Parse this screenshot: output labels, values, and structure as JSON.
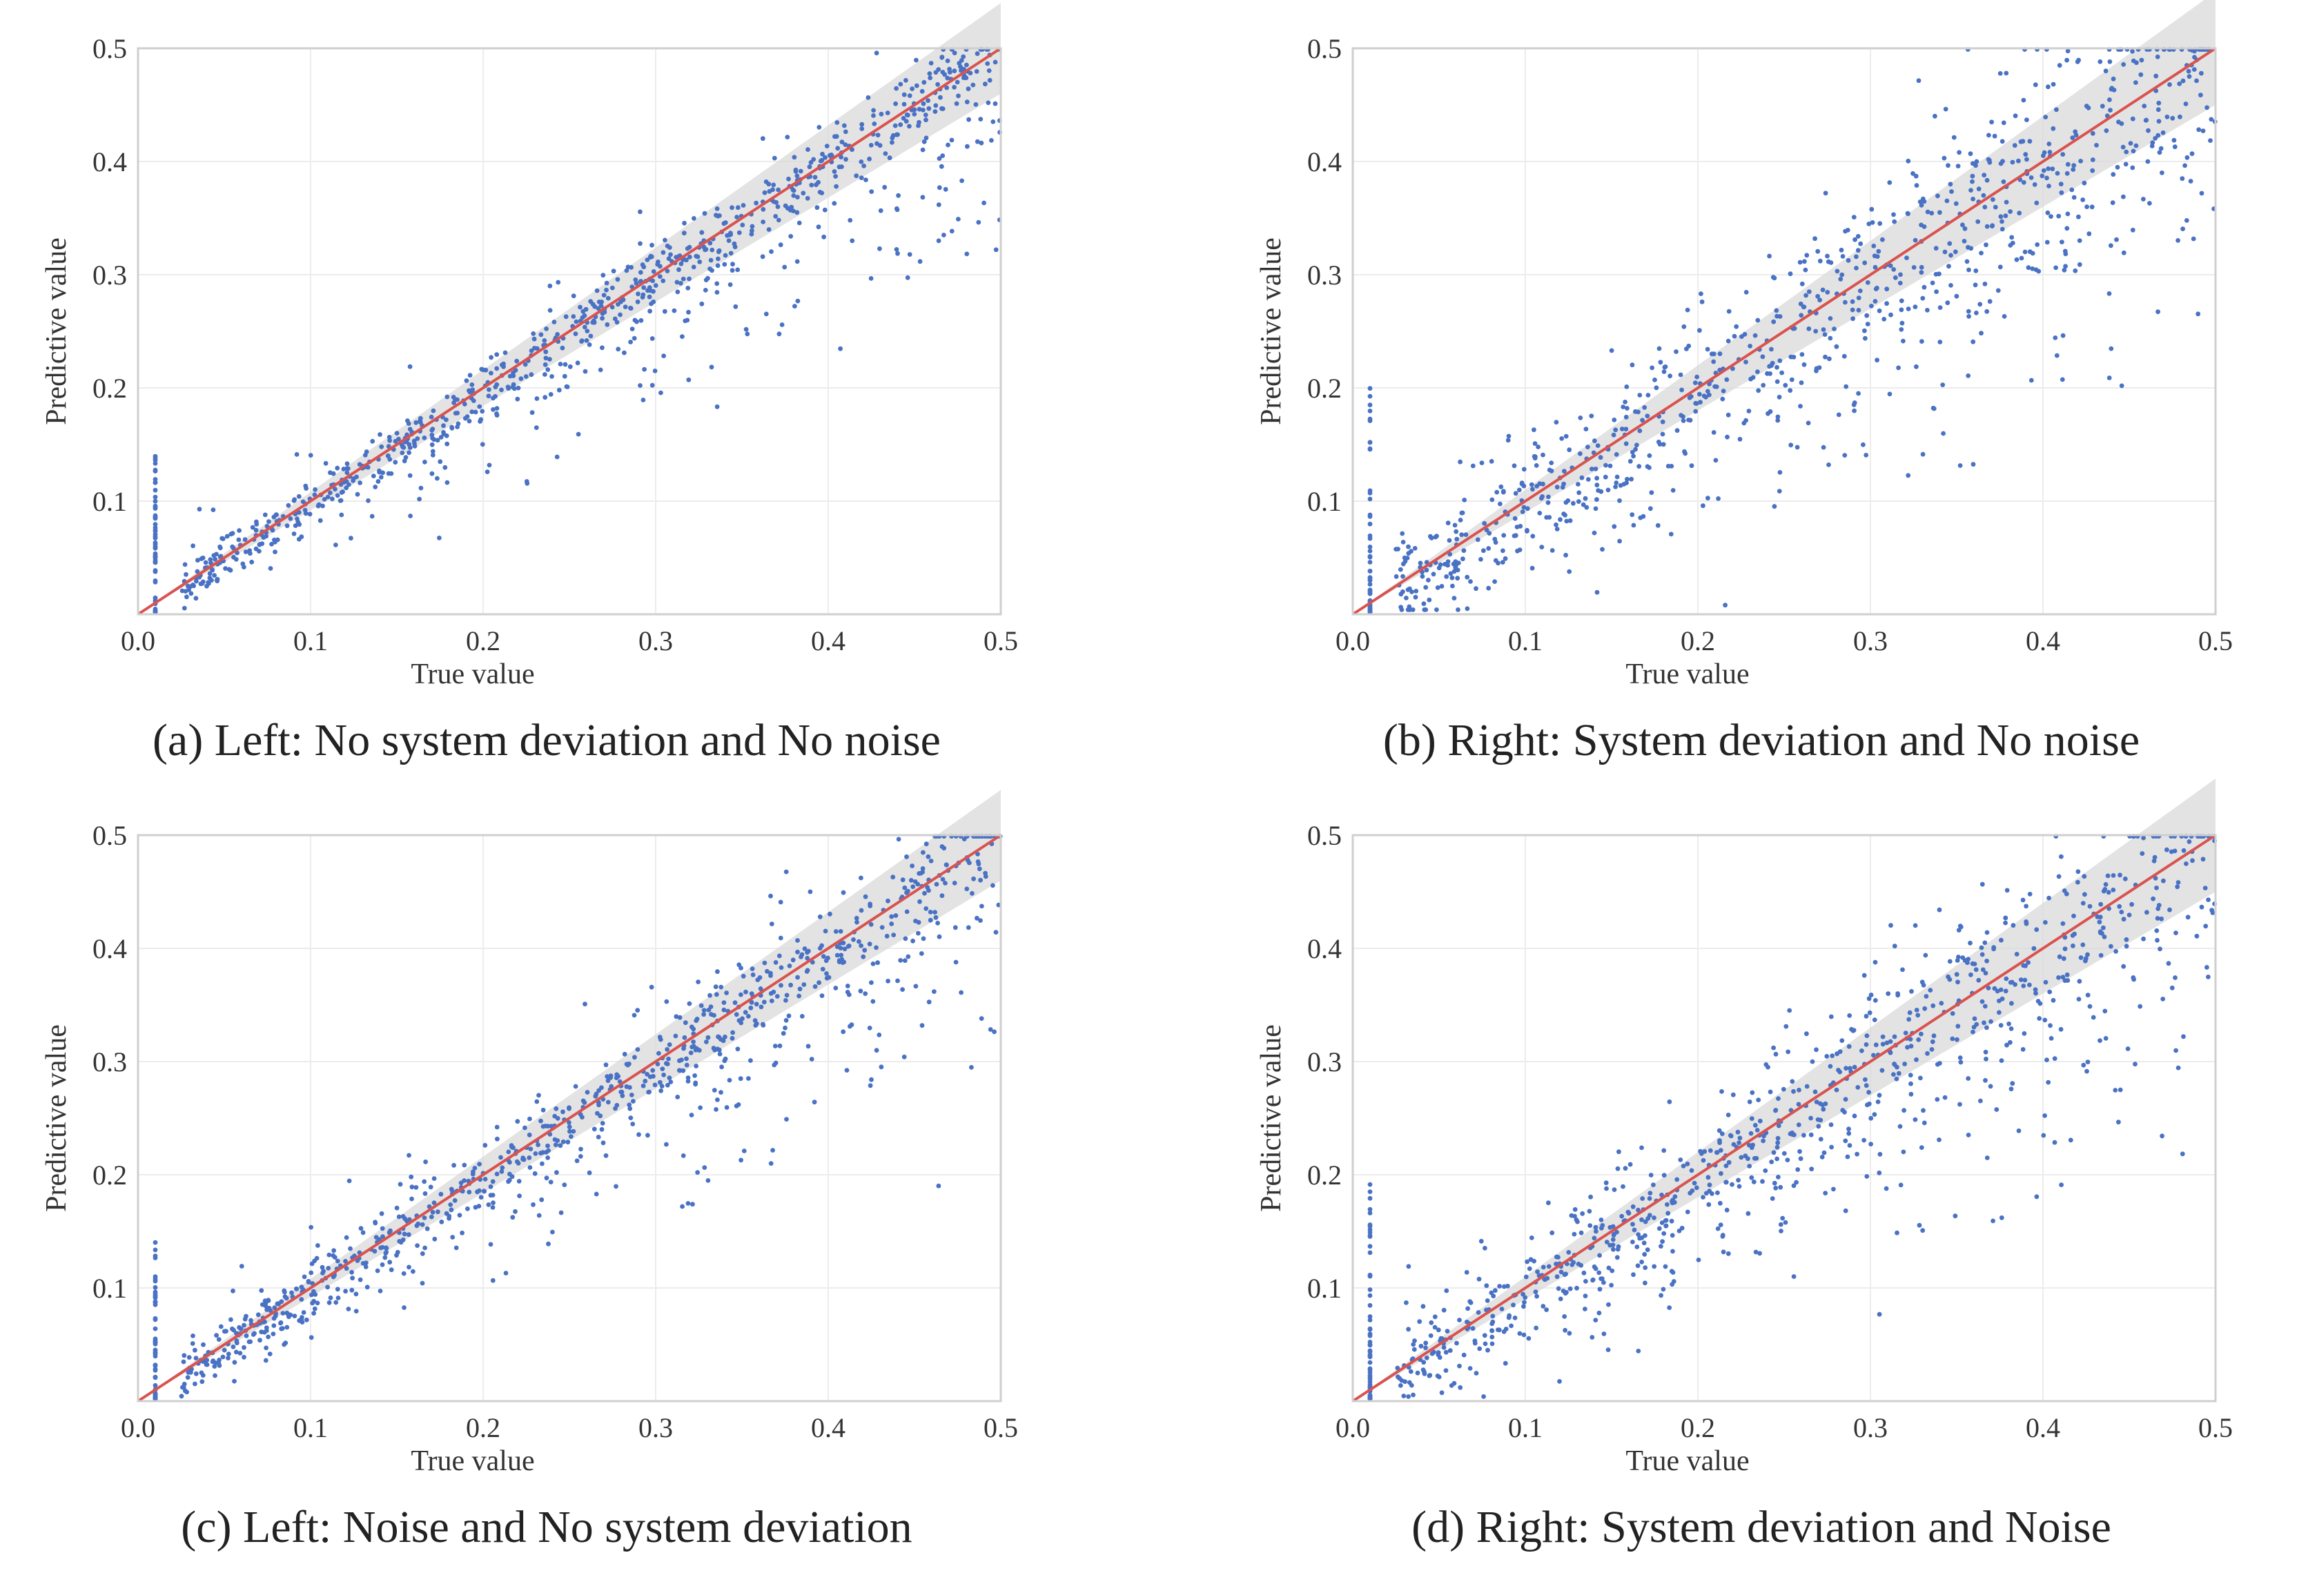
{
  "chart_data": [
    {
      "type": "scatter",
      "caption": "(a) Left: No system deviation and No noise",
      "xlabel": "True value",
      "ylabel": "Predictive value",
      "xlim": [
        0,
        0.5
      ],
      "ylim": [
        0,
        0.5
      ],
      "x_ticks": [
        "0.0",
        "0.1",
        "0.2",
        "0.3",
        "0.4",
        "0.5"
      ],
      "y_ticks": [
        "0.1",
        "0.2",
        "0.3",
        "0.4",
        "0.5"
      ],
      "grid": true,
      "identity_line": true,
      "band_halfwidth": 0.02,
      "bias": 0.0,
      "noise": 0.012,
      "under_spread": 0.09,
      "seed": 11
    },
    {
      "type": "scatter",
      "caption": "(b) Right:  System deviation and No noise",
      "xlabel": "True value",
      "ylabel": "Predictive value",
      "xlim": [
        0,
        0.5
      ],
      "ylim": [
        0,
        0.5
      ],
      "x_ticks": [
        "0.0",
        "0.1",
        "0.2",
        "0.3",
        "0.4",
        "0.5"
      ],
      "y_ticks": [
        "0.1",
        "0.2",
        "0.3",
        "0.4",
        "0.5"
      ],
      "grid": true,
      "identity_line": true,
      "band_halfwidth": 0.025,
      "bias": 0.0,
      "noise": 0.035,
      "under_spread": 0.12,
      "seed": 23
    },
    {
      "type": "scatter",
      "caption": "(c) Left: Noise and No system deviation",
      "xlabel": "True value",
      "ylabel": "Predictive value",
      "xlim": [
        0,
        0.5
      ],
      "ylim": [
        0,
        0.5
      ],
      "x_ticks": [
        "0.0",
        "0.1",
        "0.2",
        "0.3",
        "0.4",
        "0.5"
      ],
      "y_ticks": [
        "0.1",
        "0.2",
        "0.3",
        "0.4",
        "0.5"
      ],
      "grid": true,
      "identity_line": true,
      "band_halfwidth": 0.02,
      "bias": 0.0,
      "noise": 0.016,
      "under_spread": 0.1,
      "seed": 37
    },
    {
      "type": "scatter",
      "caption": "(d) Right:  System deviation and Noise",
      "xlabel": "True value",
      "ylabel": "Predictive value",
      "xlim": [
        0,
        0.5
      ],
      "ylim": [
        0,
        0.5
      ],
      "x_ticks": [
        "0.0",
        "0.1",
        "0.2",
        "0.3",
        "0.4",
        "0.5"
      ],
      "y_ticks": [
        "0.1",
        "0.2",
        "0.3",
        "0.4",
        "0.5"
      ],
      "grid": true,
      "identity_line": true,
      "band_halfwidth": 0.025,
      "bias": 0.0,
      "noise": 0.03,
      "under_spread": 0.11,
      "seed": 53
    }
  ],
  "colors": {
    "points": "#4a72c4",
    "identity_line": "#d9534f",
    "band": "#d9d9d9",
    "grid": "#ececec",
    "frame": "#cfcfcf"
  }
}
